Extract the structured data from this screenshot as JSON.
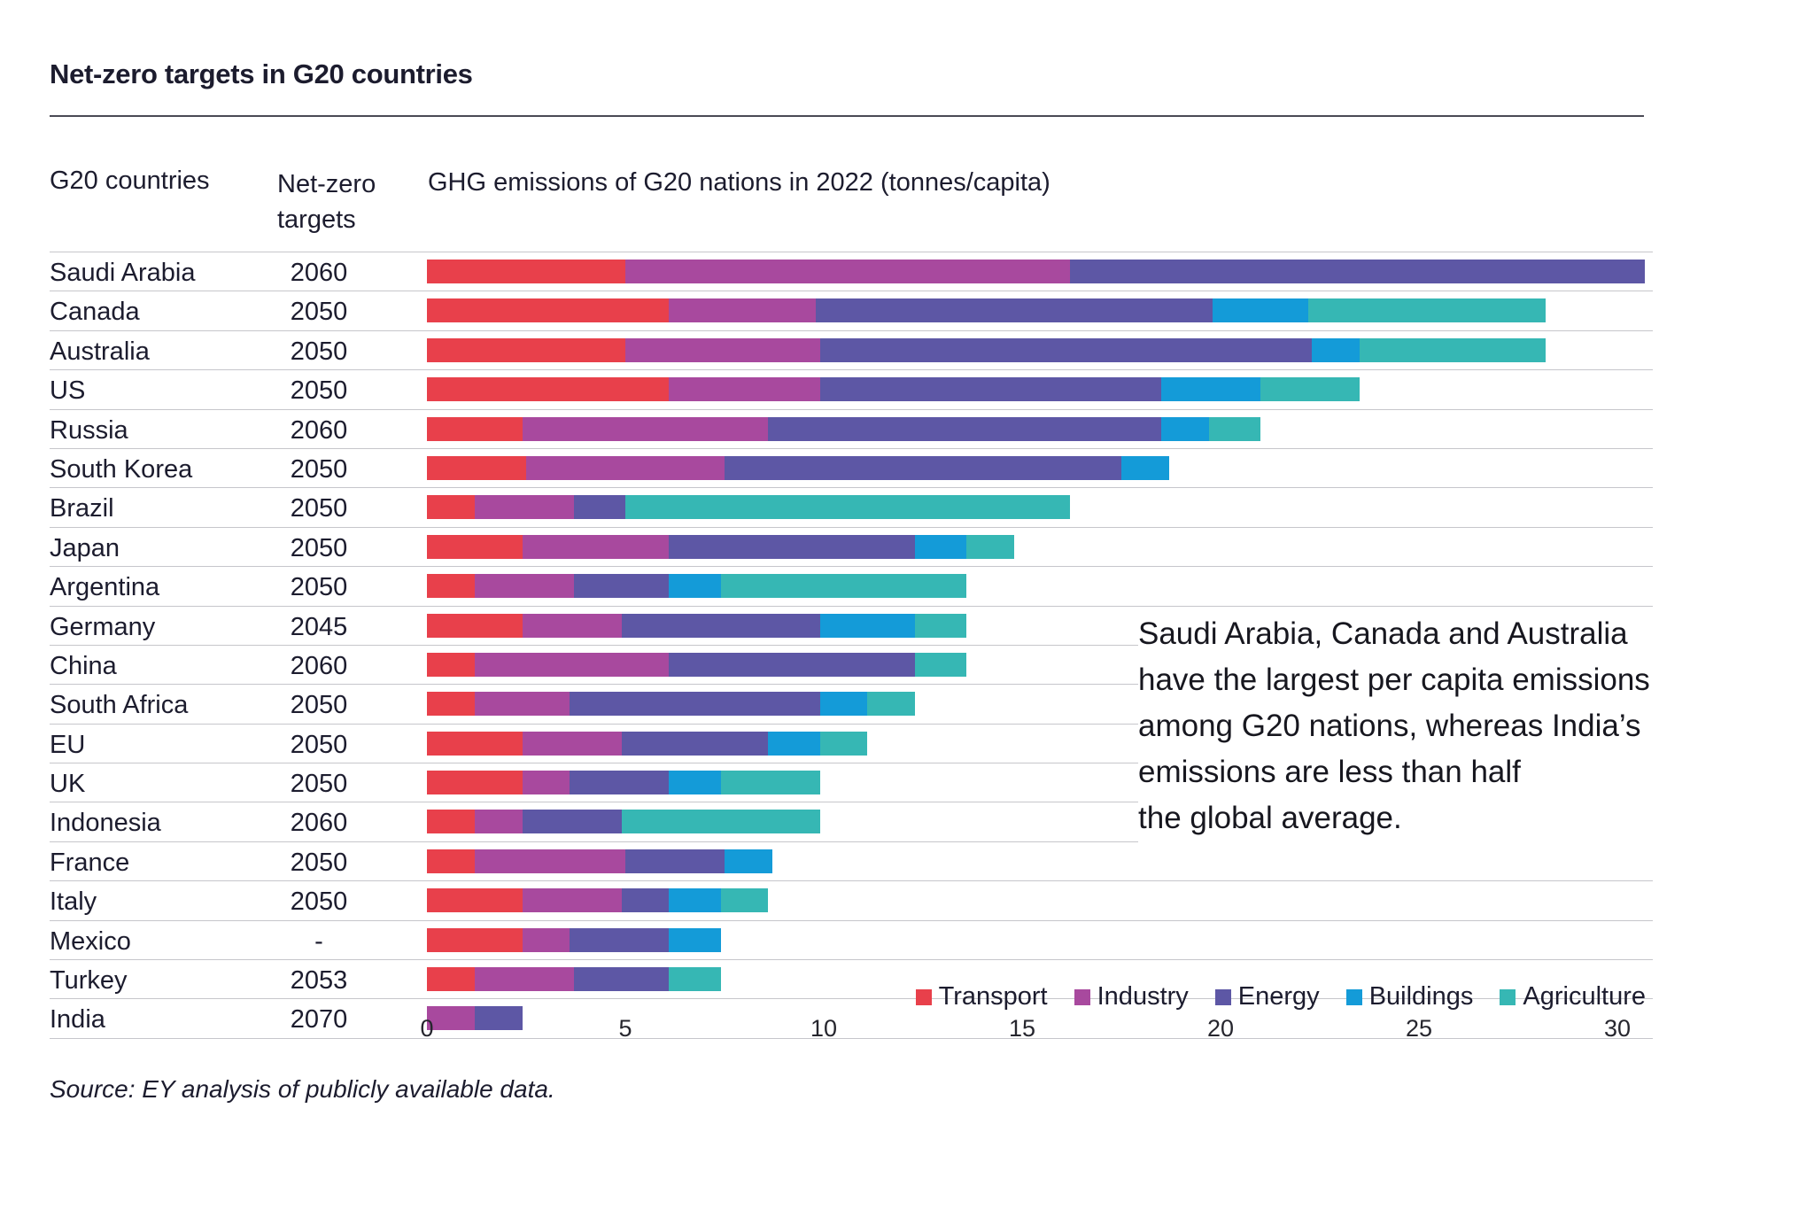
{
  "title": "Net-zero targets in G20 countries",
  "columns": {
    "countries": "G20 countries",
    "targets": "Net-zero targets",
    "chart": "GHG emissions of G20 nations in 2022 (tonnes/capita)"
  },
  "legend": [
    "Transport",
    "Industry",
    "Energy",
    "Buildings",
    "Agriculture"
  ],
  "colors": {
    "transport": "#e8404b",
    "industry": "#a8499e",
    "energy": "#5d57a5",
    "buildings": "#149bd8",
    "agriculture": "#36b7b4",
    "text_dark": "#1c1c2e",
    "row_line": "#c6c6cb"
  },
  "annotation": {
    "lines": [
      "Saudi Arabia, Canada and Australia",
      "have the largest per capita emissions",
      "among G20 nations, whereas India’s",
      "emissions are less than half",
      "the global average."
    ]
  },
  "source": "Source: EY analysis of publicly available data.",
  "chart_data": {
    "type": "bar",
    "stacked": true,
    "orientation": "horizontal",
    "title": "GHG emissions of G20 nations in 2022 (tonnes/capita)",
    "xlabel": "tonnes/capita",
    "ylabel": "G20 countries",
    "xlim": [
      0,
      30
    ],
    "xticks": [
      0,
      5,
      10,
      15,
      20,
      25,
      30
    ],
    "grid": false,
    "legend_position": "bottom-right",
    "series_names": [
      "Transport",
      "Industry",
      "Energy",
      "Buildings",
      "Agriculture"
    ],
    "rows": [
      {
        "country": "Saudi Arabia",
        "target": "2060",
        "values": [
          5.0,
          11.2,
          14.5,
          0,
          0
        ],
        "total": 30.7
      },
      {
        "country": "Canada",
        "target": "2050",
        "values": [
          6.1,
          3.7,
          10.0,
          2.4,
          6.0
        ],
        "total": 28.2
      },
      {
        "country": "Australia",
        "target": "2050",
        "values": [
          5.0,
          4.9,
          12.4,
          1.2,
          4.7
        ],
        "total": 28.2
      },
      {
        "country": "US",
        "target": "2050",
        "values": [
          6.1,
          3.8,
          8.6,
          2.5,
          2.5
        ],
        "total": 23.5
      },
      {
        "country": "Russia",
        "target": "2060",
        "values": [
          2.4,
          6.2,
          9.9,
          1.2,
          1.3
        ],
        "total": 21.0
      },
      {
        "country": "South Korea",
        "target": "2050",
        "values": [
          2.5,
          5.0,
          10.0,
          1.2,
          0
        ],
        "total": 18.7
      },
      {
        "country": "Brazil",
        "target": "2050",
        "values": [
          1.2,
          2.5,
          1.3,
          0,
          11.2
        ],
        "total": 16.2
      },
      {
        "country": "Japan",
        "target": "2050",
        "values": [
          2.4,
          3.7,
          6.2,
          1.3,
          1.2
        ],
        "total": 14.8
      },
      {
        "country": "Argentina",
        "target": "2050",
        "values": [
          1.2,
          2.5,
          2.4,
          1.3,
          6.2
        ],
        "total": 13.6
      },
      {
        "country": "Germany",
        "target": "2045",
        "values": [
          2.4,
          2.5,
          5.0,
          2.4,
          1.3
        ],
        "total": 13.6
      },
      {
        "country": "China",
        "target": "2060",
        "values": [
          1.2,
          4.9,
          6.2,
          0,
          1.3
        ],
        "total": 13.6
      },
      {
        "country": "South Africa",
        "target": "2050",
        "values": [
          1.2,
          2.4,
          6.3,
          1.2,
          1.2
        ],
        "total": 12.3
      },
      {
        "country": "EU",
        "target": "2050",
        "values": [
          2.4,
          2.5,
          3.7,
          1.3,
          1.2
        ],
        "total": 11.1
      },
      {
        "country": "UK",
        "target": "2050",
        "values": [
          2.4,
          1.2,
          2.5,
          1.3,
          2.5
        ],
        "total": 9.9
      },
      {
        "country": "Indonesia",
        "target": "2060",
        "values": [
          1.2,
          1.2,
          2.5,
          0,
          5.0
        ],
        "total": 9.9
      },
      {
        "country": "France",
        "target": "2050",
        "values": [
          1.2,
          3.8,
          2.5,
          1.2,
          0
        ],
        "total": 8.7
      },
      {
        "country": "Italy",
        "target": "2050",
        "values": [
          2.4,
          2.5,
          1.2,
          1.3,
          1.2
        ],
        "total": 8.6
      },
      {
        "country": "Mexico",
        "target": "-",
        "values": [
          2.4,
          1.2,
          2.5,
          1.3,
          0
        ],
        "total": 7.4
      },
      {
        "country": "Turkey",
        "target": "2053",
        "values": [
          1.2,
          2.5,
          2.4,
          0,
          1.3
        ],
        "total": 7.4
      },
      {
        "country": "India",
        "target": "2070",
        "values": [
          0,
          1.2,
          1.2,
          0,
          0
        ],
        "total": 2.4
      }
    ]
  }
}
